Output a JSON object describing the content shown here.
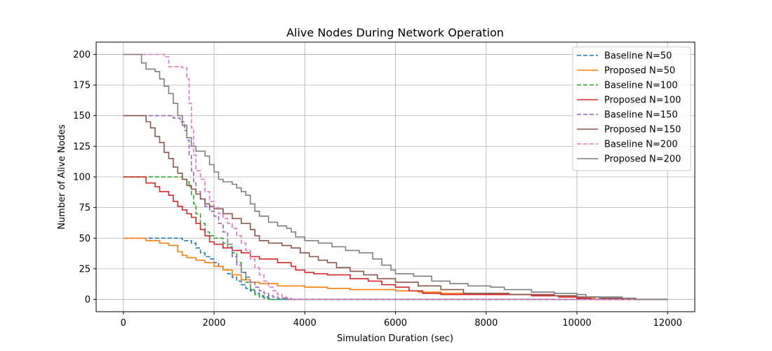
{
  "chart_data": {
    "type": "line",
    "title": "Alive Nodes During Network Operation",
    "xlabel": "Simulation Duration (sec)",
    "ylabel": "Number of Alive Nodes",
    "xlim": [
      -600,
      12600
    ],
    "ylim": [
      -10,
      210
    ],
    "xticks": [
      0,
      2000,
      4000,
      6000,
      8000,
      10000,
      12000
    ],
    "yticks": [
      0,
      25,
      50,
      75,
      100,
      125,
      150,
      175,
      200
    ],
    "grid": true,
    "legend_position": "top-right",
    "series": [
      {
        "name": "Baseline N=50",
        "color": "#1f77b4",
        "dash": true,
        "points": [
          [
            0,
            50
          ],
          [
            500,
            50
          ],
          [
            1100,
            50
          ],
          [
            1300,
            48
          ],
          [
            1500,
            46
          ],
          [
            1600,
            42
          ],
          [
            1700,
            38
          ],
          [
            1800,
            35
          ],
          [
            1900,
            33
          ],
          [
            2000,
            30
          ],
          [
            2100,
            27
          ],
          [
            2200,
            24
          ],
          [
            2300,
            21
          ],
          [
            2400,
            18
          ],
          [
            2500,
            15
          ],
          [
            2600,
            12
          ],
          [
            2700,
            9
          ],
          [
            2800,
            7
          ],
          [
            2900,
            5
          ],
          [
            3000,
            3
          ],
          [
            3100,
            2
          ],
          [
            3200,
            1
          ],
          [
            3250,
            0
          ],
          [
            12000,
            0
          ]
        ]
      },
      {
        "name": "Proposed N=50",
        "color": "#ff7f0e",
        "dash": false,
        "points": [
          [
            0,
            50
          ],
          [
            300,
            50
          ],
          [
            500,
            48
          ],
          [
            800,
            46
          ],
          [
            1000,
            44
          ],
          [
            1200,
            39
          ],
          [
            1300,
            36
          ],
          [
            1400,
            34
          ],
          [
            1600,
            32
          ],
          [
            1800,
            30
          ],
          [
            2000,
            27
          ],
          [
            2200,
            24
          ],
          [
            2400,
            20
          ],
          [
            2600,
            16
          ],
          [
            2800,
            14
          ],
          [
            3000,
            13
          ],
          [
            3400,
            11
          ],
          [
            4000,
            10
          ],
          [
            4500,
            9
          ],
          [
            5000,
            8
          ],
          [
            6000,
            7
          ],
          [
            6500,
            6
          ],
          [
            7000,
            5
          ],
          [
            8000,
            4
          ],
          [
            9000,
            3
          ],
          [
            9600,
            2
          ],
          [
            10000,
            1
          ],
          [
            10400,
            0
          ],
          [
            12000,
            0
          ]
        ]
      },
      {
        "name": "Baseline N=100",
        "color": "#2ca02c",
        "dash": true,
        "points": [
          [
            0,
            100
          ],
          [
            400,
            100
          ],
          [
            1100,
            100
          ],
          [
            1300,
            98
          ],
          [
            1400,
            96
          ],
          [
            1450,
            92
          ],
          [
            1500,
            85
          ],
          [
            1550,
            78
          ],
          [
            1600,
            70
          ],
          [
            1700,
            62
          ],
          [
            1800,
            55
          ],
          [
            1900,
            52
          ],
          [
            2000,
            50
          ],
          [
            2200,
            46
          ],
          [
            2300,
            43
          ],
          [
            2400,
            38
          ],
          [
            2500,
            30
          ],
          [
            2600,
            22
          ],
          [
            2700,
            14
          ],
          [
            2800,
            8
          ],
          [
            2900,
            4
          ],
          [
            3000,
            2
          ],
          [
            3100,
            1
          ],
          [
            3200,
            0
          ],
          [
            12000,
            0
          ]
        ]
      },
      {
        "name": "Proposed N=100",
        "color": "#d62728",
        "dash": false,
        "points": [
          [
            0,
            100
          ],
          [
            400,
            100
          ],
          [
            500,
            95
          ],
          [
            700,
            92
          ],
          [
            800,
            88
          ],
          [
            1000,
            85
          ],
          [
            1100,
            80
          ],
          [
            1200,
            76
          ],
          [
            1300,
            73
          ],
          [
            1400,
            70
          ],
          [
            1500,
            67
          ],
          [
            1600,
            62
          ],
          [
            1700,
            57
          ],
          [
            1800,
            52
          ],
          [
            1900,
            47
          ],
          [
            2000,
            45
          ],
          [
            2200,
            42
          ],
          [
            2400,
            40
          ],
          [
            2600,
            38
          ],
          [
            2800,
            35
          ],
          [
            3000,
            33
          ],
          [
            3400,
            30
          ],
          [
            3700,
            27
          ],
          [
            3800,
            24
          ],
          [
            4000,
            22
          ],
          [
            4200,
            21
          ],
          [
            4500,
            20
          ],
          [
            5000,
            17
          ],
          [
            5400,
            15
          ],
          [
            5700,
            12
          ],
          [
            6000,
            10
          ],
          [
            6300,
            7
          ],
          [
            6600,
            5
          ],
          [
            7000,
            4
          ],
          [
            8000,
            4
          ],
          [
            9000,
            3
          ],
          [
            9600,
            2
          ],
          [
            10000,
            1
          ],
          [
            10300,
            0
          ],
          [
            12000,
            0
          ]
        ]
      },
      {
        "name": "Baseline N=150",
        "color": "#9467bd",
        "dash": true,
        "points": [
          [
            0,
            150
          ],
          [
            500,
            150
          ],
          [
            1100,
            148
          ],
          [
            1250,
            145
          ],
          [
            1350,
            138
          ],
          [
            1400,
            130
          ],
          [
            1450,
            118
          ],
          [
            1500,
            105
          ],
          [
            1550,
            95
          ],
          [
            1600,
            88
          ],
          [
            1700,
            82
          ],
          [
            1800,
            76
          ],
          [
            1900,
            72
          ],
          [
            2000,
            68
          ],
          [
            2100,
            62
          ],
          [
            2200,
            55
          ],
          [
            2300,
            45
          ],
          [
            2400,
            35
          ],
          [
            2500,
            28
          ],
          [
            2600,
            22
          ],
          [
            2700,
            18
          ],
          [
            2800,
            14
          ],
          [
            2900,
            10
          ],
          [
            3000,
            7
          ],
          [
            3100,
            5
          ],
          [
            3200,
            3
          ],
          [
            3300,
            2
          ],
          [
            3400,
            1
          ],
          [
            3600,
            0
          ],
          [
            12000,
            0
          ]
        ]
      },
      {
        "name": "Proposed N=150",
        "color": "#8c564b",
        "dash": false,
        "points": [
          [
            0,
            150
          ],
          [
            400,
            150
          ],
          [
            500,
            145
          ],
          [
            600,
            140
          ],
          [
            700,
            133
          ],
          [
            800,
            128
          ],
          [
            900,
            120
          ],
          [
            1000,
            115
          ],
          [
            1100,
            108
          ],
          [
            1200,
            103
          ],
          [
            1300,
            98
          ],
          [
            1400,
            93
          ],
          [
            1500,
            90
          ],
          [
            1600,
            86
          ],
          [
            1700,
            82
          ],
          [
            1800,
            78
          ],
          [
            1900,
            76
          ],
          [
            2000,
            74
          ],
          [
            2200,
            70
          ],
          [
            2400,
            66
          ],
          [
            2600,
            62
          ],
          [
            2800,
            57
          ],
          [
            2900,
            52
          ],
          [
            3000,
            48
          ],
          [
            3200,
            46
          ],
          [
            3500,
            44
          ],
          [
            3700,
            42
          ],
          [
            3900,
            38
          ],
          [
            4100,
            35
          ],
          [
            4300,
            32
          ],
          [
            4500,
            30
          ],
          [
            4700,
            26
          ],
          [
            5000,
            23
          ],
          [
            5300,
            20
          ],
          [
            5600,
            17
          ],
          [
            6000,
            14
          ],
          [
            6500,
            11
          ],
          [
            7000,
            8
          ],
          [
            7500,
            5
          ],
          [
            8500,
            4
          ],
          [
            9500,
            3
          ],
          [
            10000,
            2
          ],
          [
            10500,
            1
          ],
          [
            11000,
            0
          ],
          [
            12000,
            0
          ]
        ]
      },
      {
        "name": "Baseline N=200",
        "color": "#e377c2",
        "dash": true,
        "points": [
          [
            0,
            200
          ],
          [
            300,
            200
          ],
          [
            900,
            198
          ],
          [
            1000,
            190
          ],
          [
            1300,
            189
          ],
          [
            1400,
            180
          ],
          [
            1450,
            160
          ],
          [
            1500,
            140
          ],
          [
            1550,
            118
          ],
          [
            1600,
            105
          ],
          [
            1700,
            98
          ],
          [
            1800,
            88
          ],
          [
            1900,
            80
          ],
          [
            2000,
            75
          ],
          [
            2100,
            70
          ],
          [
            2200,
            66
          ],
          [
            2300,
            62
          ],
          [
            2400,
            58
          ],
          [
            2500,
            52
          ],
          [
            2600,
            46
          ],
          [
            2700,
            40
          ],
          [
            2800,
            33
          ],
          [
            2900,
            26
          ],
          [
            3000,
            20
          ],
          [
            3100,
            15
          ],
          [
            3200,
            10
          ],
          [
            3300,
            7
          ],
          [
            3400,
            4
          ],
          [
            3500,
            2
          ],
          [
            3600,
            1
          ],
          [
            3700,
            0
          ],
          [
            12000,
            0
          ]
        ]
      },
      {
        "name": "Proposed N=200",
        "color": "#7f7f7f",
        "dash": false,
        "points": [
          [
            0,
            200
          ],
          [
            300,
            200
          ],
          [
            400,
            193
          ],
          [
            500,
            188
          ],
          [
            700,
            186
          ],
          [
            800,
            180
          ],
          [
            900,
            174
          ],
          [
            1000,
            168
          ],
          [
            1100,
            160
          ],
          [
            1200,
            150
          ],
          [
            1300,
            142
          ],
          [
            1400,
            132
          ],
          [
            1500,
            125
          ],
          [
            1600,
            121
          ],
          [
            1800,
            117
          ],
          [
            1900,
            110
          ],
          [
            2000,
            104
          ],
          [
            2100,
            98
          ],
          [
            2200,
            96
          ],
          [
            2400,
            94
          ],
          [
            2500,
            91
          ],
          [
            2600,
            88
          ],
          [
            2700,
            85
          ],
          [
            2800,
            78
          ],
          [
            2900,
            72
          ],
          [
            3000,
            68
          ],
          [
            3200,
            63
          ],
          [
            3400,
            60
          ],
          [
            3600,
            58
          ],
          [
            3700,
            55
          ],
          [
            3800,
            51
          ],
          [
            4000,
            48
          ],
          [
            4300,
            46
          ],
          [
            4600,
            43
          ],
          [
            4900,
            40
          ],
          [
            5200,
            38
          ],
          [
            5500,
            33
          ],
          [
            5700,
            28
          ],
          [
            5900,
            24
          ],
          [
            6000,
            21
          ],
          [
            6400,
            19
          ],
          [
            6800,
            15
          ],
          [
            7200,
            13
          ],
          [
            7600,
            11
          ],
          [
            8100,
            10
          ],
          [
            8400,
            8
          ],
          [
            9000,
            6
          ],
          [
            9500,
            5
          ],
          [
            10000,
            4
          ],
          [
            10200,
            2
          ],
          [
            11000,
            1
          ],
          [
            11300,
            0
          ],
          [
            12000,
            0
          ]
        ]
      }
    ]
  }
}
